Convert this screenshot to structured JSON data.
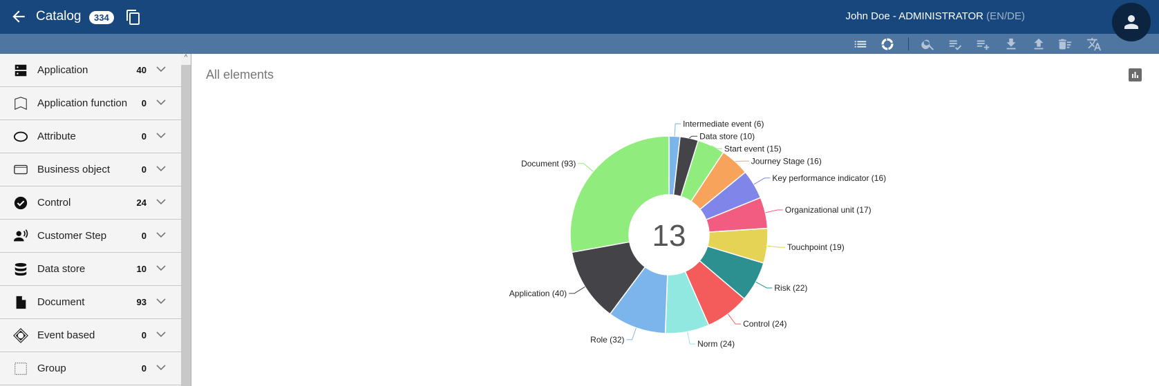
{
  "header": {
    "title": "Catalog",
    "count": "334",
    "user": "John Doe - ADMINISTRATOR",
    "lang": "(EN/DE)"
  },
  "toolbar": {
    "icons": [
      "list-icon",
      "donut-chart-icon",
      "search-icon",
      "checklist-icon",
      "add-list-icon",
      "download-icon",
      "upload-icon",
      "delete-list-icon",
      "translate-icon"
    ]
  },
  "sidebar": {
    "items": [
      {
        "label": "Application",
        "count": "40",
        "icon": "server-icon"
      },
      {
        "label": "Application function",
        "count": "0",
        "icon": "function-icon"
      },
      {
        "label": "Attribute",
        "count": "0",
        "icon": "ellipse-icon"
      },
      {
        "label": "Business object",
        "count": "0",
        "icon": "rectangle-icon"
      },
      {
        "label": "Control",
        "count": "24",
        "icon": "check-circle-icon"
      },
      {
        "label": "Customer Step",
        "count": "0",
        "icon": "customer-voice-icon"
      },
      {
        "label": "Data store",
        "count": "10",
        "icon": "database-icon"
      },
      {
        "label": "Document",
        "count": "93",
        "icon": "document-icon"
      },
      {
        "label": "Event based",
        "count": "0",
        "icon": "event-diamond-icon"
      },
      {
        "label": "Group",
        "count": "0",
        "icon": "dashed-square-icon"
      }
    ]
  },
  "main": {
    "title": "All elements"
  },
  "chart_data": {
    "type": "pie",
    "donut": true,
    "center_label": "13",
    "slices": [
      {
        "name": "Intermediate event",
        "value": 6,
        "color": "#7cb5ec"
      },
      {
        "name": "Data store",
        "value": 10,
        "color": "#434348"
      },
      {
        "name": "Start event",
        "value": 15,
        "color": "#90ed7d"
      },
      {
        "name": "Journey Stage",
        "value": 16,
        "color": "#f7a35c"
      },
      {
        "name": "Key performance indicator",
        "value": 16,
        "color": "#8085e9"
      },
      {
        "name": "Organizational unit",
        "value": 17,
        "color": "#f15c80"
      },
      {
        "name": "Touchpoint",
        "value": 19,
        "color": "#e4d354"
      },
      {
        "name": "Risk",
        "value": 22,
        "color": "#2b908f"
      },
      {
        "name": "Control",
        "value": 24,
        "color": "#f45b5b"
      },
      {
        "name": "Norm",
        "value": 24,
        "color": "#91e8e1"
      },
      {
        "name": "Role",
        "value": 32,
        "color": "#7cb5ec"
      },
      {
        "name": "Application",
        "value": 40,
        "color": "#434348"
      },
      {
        "name": "Document",
        "value": 93,
        "color": "#90ed7d"
      }
    ]
  }
}
